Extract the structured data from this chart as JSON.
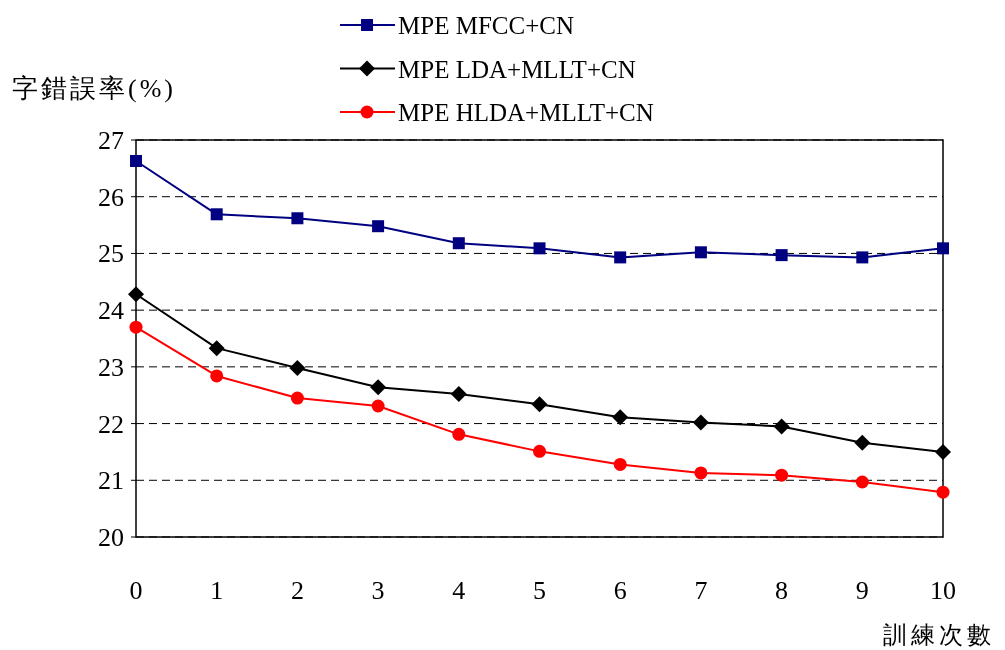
{
  "chart_data": {
    "type": "line",
    "ylabel": "字錯誤率(%)",
    "xlabel": "訓練次數",
    "x": [
      0,
      1,
      2,
      3,
      4,
      5,
      6,
      7,
      8,
      9,
      10
    ],
    "xlim": [
      0,
      10
    ],
    "xticks": [
      0,
      1,
      2,
      3,
      4,
      5,
      6,
      7,
      8,
      9,
      10
    ],
    "ylim": [
      20,
      27
    ],
    "yticks": [
      20,
      21,
      22,
      23,
      24,
      25,
      26,
      27
    ],
    "grid": "y",
    "legend": "top",
    "line_style": "solid",
    "series": [
      {
        "name": "MPE MFCC+CN",
        "color": "#000080",
        "marker": "square",
        "values": [
          26.63,
          25.69,
          25.62,
          25.48,
          25.18,
          25.09,
          24.93,
          25.02,
          24.97,
          24.93,
          25.09
        ]
      },
      {
        "name": "MPE LDA+MLLT+CN",
        "color": "#000000",
        "marker": "diamond",
        "values": [
          24.28,
          23.33,
          22.98,
          22.64,
          22.52,
          22.34,
          22.11,
          22.02,
          21.95,
          21.66,
          21.5
        ]
      },
      {
        "name": "MPE HLDA+MLLT+CN",
        "color": "#ff0000",
        "marker": "circle",
        "values": [
          23.7,
          22.84,
          22.45,
          22.31,
          21.81,
          21.51,
          21.28,
          21.13,
          21.09,
          20.97,
          20.79
        ]
      }
    ]
  }
}
